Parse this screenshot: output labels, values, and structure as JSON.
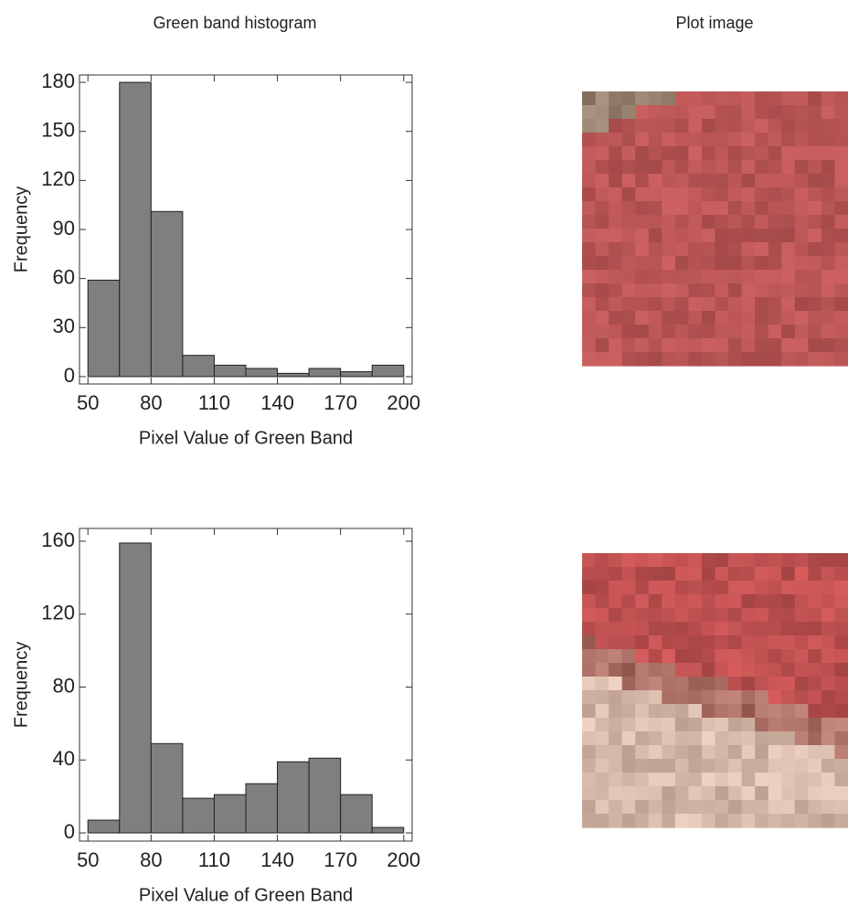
{
  "column_titles": [
    "Green band histogram",
    "Plot image"
  ],
  "chart_data": [
    {
      "type": "histogram",
      "x_label": "Pixel Value of Green Band",
      "y_label": "Frequency",
      "bins": [
        50,
        65,
        80,
        95,
        110,
        125,
        140,
        155,
        170,
        185,
        200
      ],
      "values": [
        59,
        180,
        101,
        13,
        7,
        5,
        2,
        5,
        3,
        7
      ],
      "color": "#7f7f7f",
      "xlim": [
        46,
        204
      ],
      "xticks": [
        50,
        80,
        110,
        140,
        170,
        200
      ],
      "ylim": [
        -4.5,
        184.5
      ],
      "yticks": [
        0,
        30,
        60,
        90,
        120,
        150,
        180
      ]
    },
    {
      "type": "histogram",
      "x_label": "Pixel Value of Green Band",
      "y_label": "Frequency",
      "bins": [
        50,
        65,
        80,
        95,
        110,
        125,
        140,
        155,
        170,
        185,
        200
      ],
      "values": [
        7,
        159,
        49,
        19,
        21,
        27,
        39,
        41,
        21,
        3
      ],
      "color": "#7f7f7f",
      "xlim": [
        46,
        204
      ],
      "xticks": [
        50,
        80,
        110,
        140,
        170,
        200
      ],
      "ylim": [
        -4.5,
        167
      ],
      "yticks": [
        0,
        40,
        80,
        120,
        160
      ]
    }
  ]
}
